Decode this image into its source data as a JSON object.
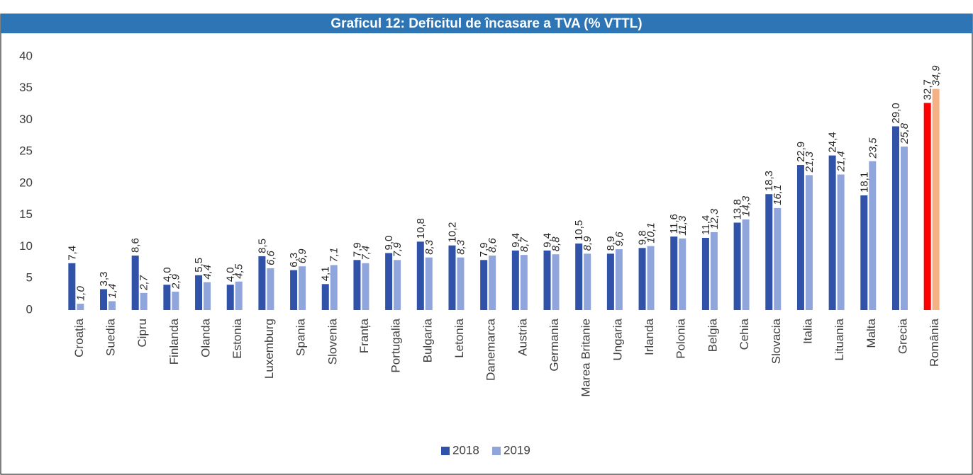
{
  "chart_data": {
    "type": "bar",
    "title": "Graficul 12: Deficitul de încasare a TVA (% VTTL)",
    "categories": [
      "Croația",
      "Suedia",
      "Cipru",
      "Finlanda",
      "Olanda",
      "Estonia",
      "Luxemburg",
      "Spania",
      "Slovenia",
      "Franța",
      "Portugalia",
      "Bulgaria",
      "Letonia",
      "Danemarca",
      "Austria",
      "Germania",
      "Marea Britanie",
      "Ungaria",
      "Irlanda",
      "Polonia",
      "Belgia",
      "Cehia",
      "Slovacia",
      "Italia",
      "Lituania",
      "Malta",
      "Grecia",
      "România"
    ],
    "series": [
      {
        "name": "2018",
        "color": "#3052a8",
        "highlight_color": "#ff0000",
        "values": [
          7.4,
          3.3,
          8.6,
          4.0,
          5.5,
          4.0,
          8.5,
          6.3,
          4.1,
          7.9,
          9.0,
          10.8,
          10.2,
          7.9,
          9.4,
          9.4,
          10.5,
          8.9,
          9.8,
          11.6,
          11.4,
          13.8,
          18.3,
          22.9,
          24.4,
          18.1,
          29.0,
          32.7
        ],
        "value_labels": [
          "7,4",
          "3,3",
          "8,6",
          "4,0",
          "5,5",
          "4,0",
          "8,5",
          "6,3",
          "4,1",
          "7,9",
          "9,0",
          "10,8",
          "10,2",
          "7,9",
          "9,4",
          "9,4",
          "10,5",
          "8,9",
          "9,8",
          "11,6",
          "11,4",
          "13,8",
          "18,3",
          "22,9",
          "24,4",
          "18,1",
          "29,0",
          "32,7"
        ]
      },
      {
        "name": "2019",
        "color": "#8fa5dc",
        "highlight_color": "#f4b183",
        "values": [
          1.0,
          1.4,
          2.7,
          2.9,
          4.4,
          4.5,
          6.6,
          6.9,
          7.1,
          7.4,
          7.9,
          8.3,
          8.3,
          8.6,
          8.7,
          8.8,
          8.9,
          9.6,
          10.1,
          11.3,
          12.3,
          14.3,
          16.1,
          21.3,
          21.4,
          23.5,
          25.8,
          34.9
        ],
        "value_labels": [
          "1,0",
          "1,4",
          "2,7",
          "2,9",
          "4,4",
          "4,5",
          "6,6",
          "6,9",
          "7,1",
          "7,4",
          "7,9",
          "8,3",
          "8,3",
          "8,6",
          "8,7",
          "8,8",
          "8,9",
          "9,6",
          "10,1",
          "11,3",
          "12,3",
          "14,3",
          "16,1",
          "21,3",
          "21,4",
          "23,5",
          "25,8",
          "34,9"
        ]
      }
    ],
    "highlight_index": 27,
    "ylim": [
      0,
      40
    ],
    "yticks": [
      0,
      5,
      10,
      15,
      20,
      25,
      30,
      35,
      40
    ],
    "grid": false,
    "legend": "bottom"
  }
}
